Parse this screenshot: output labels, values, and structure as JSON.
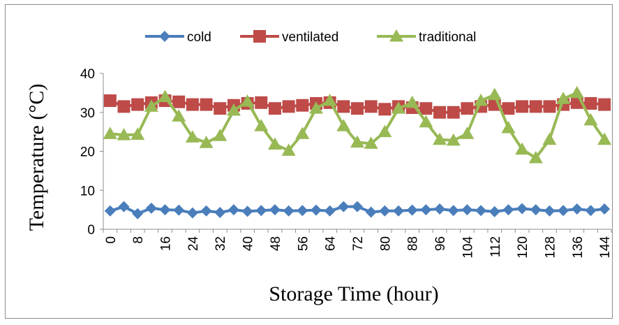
{
  "chart_data": {
    "type": "line",
    "xlabel": "Storage Time (hour)",
    "ylabel": "Temperature (°C)",
    "ylim": [
      0,
      40
    ],
    "yticks": [
      0,
      10,
      20,
      30,
      40
    ],
    "grid": false,
    "legend_position": "top",
    "x": [
      0,
      4,
      8,
      12,
      16,
      20,
      24,
      28,
      32,
      36,
      40,
      44,
      48,
      52,
      56,
      60,
      64,
      68,
      72,
      76,
      80,
      84,
      88,
      92,
      96,
      100,
      104,
      108,
      112,
      116,
      120,
      124,
      128,
      132,
      136,
      140,
      144
    ],
    "xticks": [
      "0",
      "8",
      "16",
      "24",
      "32",
      "40",
      "48",
      "56",
      "64",
      "72",
      "80",
      "88",
      "96",
      "104",
      "112",
      "120",
      "128",
      "136",
      "144"
    ],
    "series": [
      {
        "name": "cold",
        "color": "#4a7ebb",
        "marker": "diamond",
        "values": [
          4.7,
          5.8,
          4.0,
          5.4,
          5.0,
          4.9,
          4.2,
          4.7,
          4.3,
          5.0,
          4.6,
          4.8,
          5.0,
          4.7,
          4.8,
          4.9,
          4.7,
          5.8,
          5.8,
          4.4,
          4.7,
          4.7,
          4.9,
          5.0,
          5.2,
          4.8,
          5.0,
          4.8,
          4.5,
          5.0,
          5.3,
          5.0,
          4.7,
          4.8,
          5.2,
          4.8,
          5.2
        ]
      },
      {
        "name": "ventilated",
        "color": "#be4b48",
        "marker": "square",
        "values": [
          33.0,
          31.5,
          32.0,
          32.5,
          33.0,
          32.7,
          32.0,
          32.0,
          31.0,
          31.8,
          32.3,
          32.5,
          31.0,
          31.5,
          31.8,
          32.3,
          32.5,
          31.5,
          31.0,
          31.5,
          30.8,
          31.5,
          31.2,
          31.0,
          30.0,
          30.0,
          31.0,
          31.5,
          32.0,
          31.0,
          31.5,
          31.5,
          31.5,
          32.0,
          32.5,
          32.3,
          32.0
        ]
      },
      {
        "name": "traditional",
        "color": "#98b954",
        "marker": "triangle",
        "values": [
          24.5,
          24.2,
          24.3,
          31.5,
          34.0,
          29.0,
          23.6,
          22.2,
          24.0,
          30.5,
          32.8,
          26.5,
          21.8,
          20.2,
          24.5,
          31.0,
          33.0,
          26.5,
          22.3,
          22.0,
          25.0,
          31.0,
          32.5,
          27.5,
          23.0,
          22.8,
          24.5,
          33.0,
          34.5,
          26.0,
          20.5,
          18.3,
          23.0,
          33.5,
          35.0,
          28.0,
          23.0
        ]
      }
    ]
  }
}
